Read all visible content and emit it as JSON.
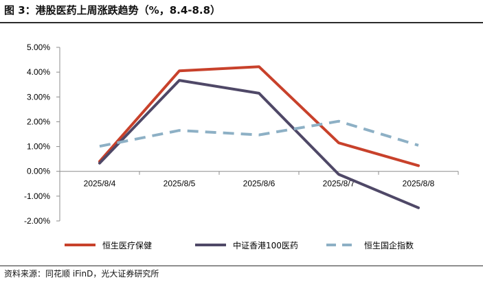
{
  "figure_title": "图 3：港股医药上周涨跌趋势（%，8.4-8.8）",
  "source_note": "资料来源：同花顺 iFinD，光大证券研究所",
  "chart_data": {
    "type": "line",
    "categories": [
      "2025/8/4",
      "2025/8/5",
      "2025/8/6",
      "2025/8/7",
      "2025/8/8"
    ],
    "ylim": [
      -2,
      5
    ],
    "yticks": [
      5,
      4,
      3,
      2,
      1,
      0,
      -1,
      -2
    ],
    "ytick_labels": [
      "5.00%",
      "4.00%",
      "3.00%",
      "2.00%",
      "1.00%",
      "0.00%",
      "-1.00%",
      "-2.00%"
    ],
    "grid": false,
    "legend_position": "bottom",
    "series": [
      {
        "name": "恒生医疗保健",
        "color": "#C8412B",
        "dash": "solid",
        "values": [
          0.4,
          4.05,
          4.22,
          1.15,
          0.23
        ]
      },
      {
        "name": "中证香港100医药",
        "color": "#4F4867",
        "dash": "solid",
        "values": [
          0.33,
          3.67,
          3.15,
          -0.12,
          -1.47
        ]
      },
      {
        "name": "恒生国企指数",
        "color": "#8DB0C5",
        "dash": "dashed",
        "values": [
          1.01,
          1.65,
          1.47,
          2.02,
          1.05
        ]
      }
    ]
  }
}
